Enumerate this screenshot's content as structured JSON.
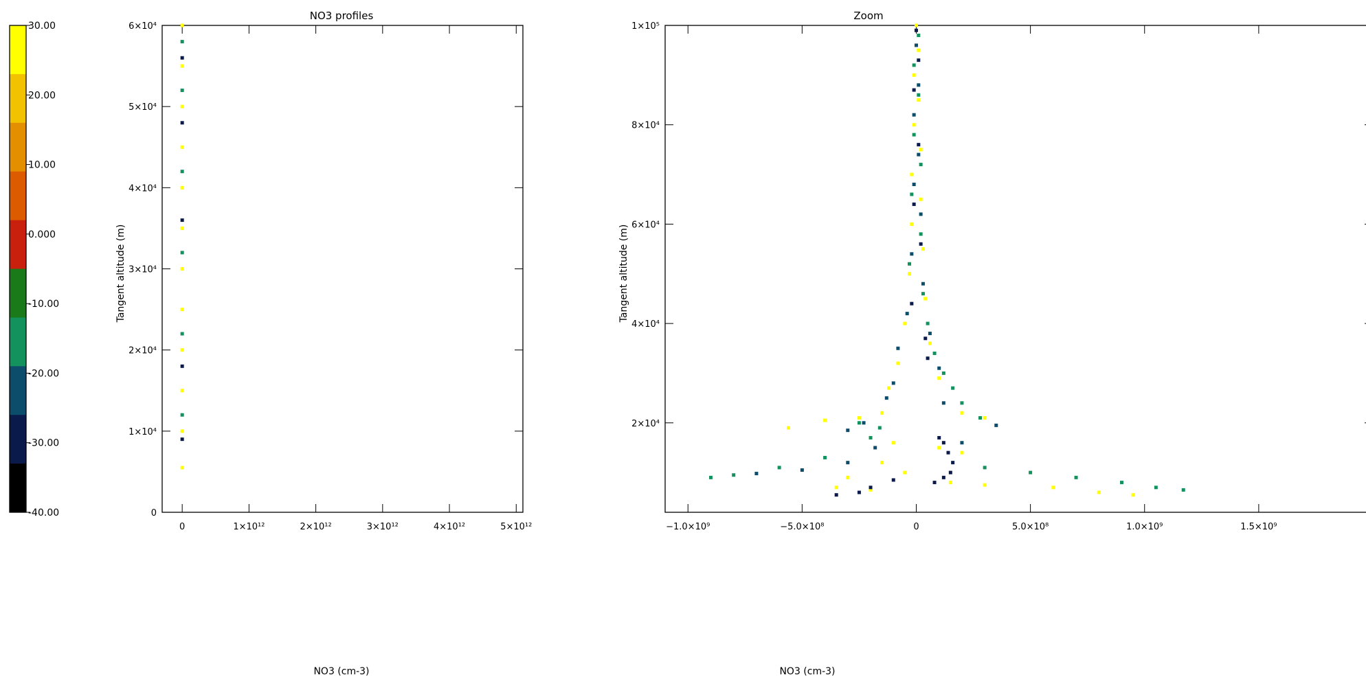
{
  "colorbar": {
    "labels": [
      "30.00",
      "20.00",
      "10.00",
      "0.000",
      "-10.00",
      "-20.00",
      "-30.00",
      "-40.00"
    ],
    "colors": [
      "#ffff00",
      "#f2c200",
      "#e38f00",
      "#dc5a00",
      "#c8200d",
      "#1a7a1a",
      "#13925e",
      "#0c4d6b",
      "#0a1a4a",
      "#000000"
    ]
  },
  "chart_data": [
    {
      "type": "scatter",
      "title": "NO3 profiles",
      "xlabel": "NO3 (cm-3)",
      "ylabel": "Tangent altitude (m)",
      "xlim": [
        -300000000000.0,
        5100000000000.0
      ],
      "ylim": [
        0,
        60000
      ],
      "x_ticks": [
        "0",
        "1×10¹²",
        "2×10¹²",
        "3×10¹²",
        "4×10¹²",
        "5×10¹²"
      ],
      "x_tick_values": [
        0,
        1000000000000.0,
        2000000000000.0,
        3000000000000.0,
        4000000000000.0,
        5000000000000.0
      ],
      "y_ticks": [
        "0",
        "1×10⁴",
        "2×10⁴",
        "3×10⁴",
        "4×10⁴",
        "5×10⁴",
        "6×10⁴"
      ],
      "y_tick_values": [
        0,
        10000,
        20000,
        30000,
        40000,
        50000,
        60000
      ],
      "series": [
        {
          "color": "#ffff00",
          "points": [
            [
              0,
              5500
            ],
            [
              0,
              10000
            ],
            [
              0,
              15000
            ],
            [
              0,
              20000
            ],
            [
              0,
              25000
            ],
            [
              0,
              30000
            ],
            [
              0,
              35000
            ],
            [
              0,
              40000
            ],
            [
              0,
              45000
            ],
            [
              0,
              50000
            ],
            [
              0,
              55000
            ],
            [
              0,
              60000
            ]
          ]
        },
        {
          "color": "#13925e",
          "points": [
            [
              0,
              12000
            ],
            [
              0,
              22000
            ],
            [
              0,
              32000
            ],
            [
              0,
              42000
            ],
            [
              0,
              52000
            ],
            [
              0,
              58000
            ]
          ]
        },
        {
          "color": "#0a1a4a",
          "points": [
            [
              0,
              9000
            ],
            [
              0,
              18000
            ],
            [
              0,
              36000
            ],
            [
              0,
              48000
            ],
            [
              0,
              56000
            ]
          ]
        }
      ]
    },
    {
      "type": "scatter",
      "title": "Zoom",
      "xlabel": "NO3 (cm-3)",
      "ylabel": "Tangent altitude (m)",
      "xlim": [
        -1100000000.0,
        2000000000.0
      ],
      "ylim": [
        2000,
        100000
      ],
      "x_ticks": [
        "−1.0×10⁹",
        "−5.0×10⁸",
        "0",
        "5.0×10⁸",
        "1.0×10⁹",
        "1.5×10⁹"
      ],
      "x_tick_values": [
        -1000000000.0,
        -500000000.0,
        0,
        500000000.0,
        1000000000.0,
        1500000000.0
      ],
      "y_ticks": [
        "2×10⁴",
        "4×10⁴",
        "6×10⁴",
        "8×10⁴",
        "1×10⁵"
      ],
      "y_tick_values": [
        20000,
        40000,
        60000,
        80000,
        100000
      ],
      "series": [
        {
          "color": "#ffff00",
          "points": [
            [
              0,
              100000
            ],
            [
              10000000.0,
              95000
            ],
            [
              -10000000.0,
              90000
            ],
            [
              10000000.0,
              85000
            ],
            [
              -10000000.0,
              80000
            ],
            [
              20000000.0,
              75000
            ],
            [
              -20000000.0,
              70000
            ],
            [
              20000000.0,
              65000
            ],
            [
              -20000000.0,
              60000
            ],
            [
              30000000.0,
              55000
            ],
            [
              -30000000.0,
              50000
            ],
            [
              40000000.0,
              45000
            ],
            [
              -50000000.0,
              40000
            ],
            [
              60000000.0,
              36000
            ],
            [
              -80000000.0,
              32000
            ],
            [
              100000000.0,
              29000
            ],
            [
              -120000000.0,
              27000
            ],
            [
              -560000000.0,
              19000
            ],
            [
              -400000000.0,
              20500
            ],
            [
              -250000000.0,
              21000
            ],
            [
              -150000000.0,
              22000
            ],
            [
              200000000.0,
              22000
            ],
            [
              300000000.0,
              21000
            ],
            [
              -200000000.0,
              17000
            ],
            [
              -100000000.0,
              16000
            ],
            [
              100000000.0,
              15000
            ],
            [
              200000000.0,
              14000
            ],
            [
              -150000000.0,
              12000
            ],
            [
              -300000000.0,
              9000
            ],
            [
              -350000000.0,
              7000
            ],
            [
              -200000000.0,
              6500
            ],
            [
              300000000.0,
              7500
            ],
            [
              600000000.0,
              7000
            ],
            [
              800000000.0,
              6000
            ],
            [
              950000000.0,
              5500
            ],
            [
              150000000.0,
              8000
            ],
            [
              -50000000.0,
              10000
            ]
          ]
        },
        {
          "color": "#13925e",
          "points": [
            [
              10000000.0,
              98000
            ],
            [
              -10000000.0,
              92000
            ],
            [
              10000000.0,
              86000
            ],
            [
              -10000000.0,
              78000
            ],
            [
              20000000.0,
              72000
            ],
            [
              -20000000.0,
              66000
            ],
            [
              20000000.0,
              58000
            ],
            [
              -30000000.0,
              52000
            ],
            [
              30000000.0,
              46000
            ],
            [
              50000000.0,
              40000
            ],
            [
              80000000.0,
              34000
            ],
            [
              120000000.0,
              30000
            ],
            [
              160000000.0,
              27000
            ],
            [
              200000000.0,
              24000
            ],
            [
              280000000.0,
              21000
            ],
            [
              -250000000.0,
              20000
            ],
            [
              -160000000.0,
              19000
            ],
            [
              -200000000.0,
              17000
            ],
            [
              -400000000.0,
              13000
            ],
            [
              -600000000.0,
              11000
            ],
            [
              -800000000.0,
              9500
            ],
            [
              -900000000.0,
              9000
            ],
            [
              300000000.0,
              11000
            ],
            [
              500000000.0,
              10000
            ],
            [
              700000000.0,
              9000
            ],
            [
              900000000.0,
              8000
            ],
            [
              1050000000.0,
              7000
            ],
            [
              1170000000.0,
              6500
            ]
          ]
        },
        {
          "color": "#0c4d6b",
          "points": [
            [
              0,
              96000
            ],
            [
              10000000.0,
              88000
            ],
            [
              -10000000.0,
              82000
            ],
            [
              10000000.0,
              74000
            ],
            [
              -10000000.0,
              68000
            ],
            [
              20000000.0,
              62000
            ],
            [
              -20000000.0,
              54000
            ],
            [
              30000000.0,
              48000
            ],
            [
              -40000000.0,
              42000
            ],
            [
              60000000.0,
              38000
            ],
            [
              -80000000.0,
              35000
            ],
            [
              100000000.0,
              31000
            ],
            [
              -100000000.0,
              28000
            ],
            [
              -130000000.0,
              25000
            ],
            [
              120000000.0,
              24000
            ],
            [
              -230000000.0,
              20000
            ],
            [
              -300000000.0,
              18500
            ],
            [
              -180000000.0,
              15000
            ],
            [
              -300000000.0,
              12000
            ],
            [
              -500000000.0,
              10500
            ],
            [
              -700000000.0,
              9800
            ],
            [
              200000000.0,
              16000
            ],
            [
              350000000.0,
              19500
            ]
          ]
        },
        {
          "color": "#0a1a4a",
          "points": [
            [
              0,
              99000
            ],
            [
              10000000.0,
              93000
            ],
            [
              -10000000.0,
              87000
            ],
            [
              10000000.0,
              76000
            ],
            [
              -10000000.0,
              64000
            ],
            [
              20000000.0,
              56000
            ],
            [
              -20000000.0,
              44000
            ],
            [
              40000000.0,
              37000
            ],
            [
              50000000.0,
              33000
            ],
            [
              100000000.0,
              17000
            ],
            [
              120000000.0,
              16000
            ],
            [
              140000000.0,
              14000
            ],
            [
              160000000.0,
              12000
            ],
            [
              150000000.0,
              10000
            ],
            [
              120000000.0,
              9000
            ],
            [
              80000000.0,
              8000
            ],
            [
              -100000000.0,
              8500
            ],
            [
              -200000000.0,
              7000
            ],
            [
              -250000000.0,
              6000
            ],
            [
              -350000000.0,
              5500
            ]
          ]
        }
      ]
    }
  ]
}
